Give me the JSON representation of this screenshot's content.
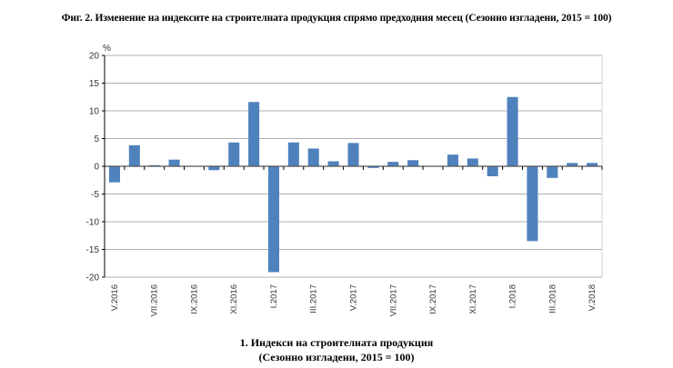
{
  "title": "Фиг. 2. Изменение на индексите на строителната продукция спрямо предходния месец (Сезонно изгладени, 2015 = 100)",
  "caption": {
    "line1": "1. Индекси на  строителната продукция",
    "line2": "(Сезонно изгладени, 2015 = 100)"
  },
  "colors": {
    "bar": "#4f81bd",
    "grid": "#b0b0b0",
    "axis": "#000000",
    "tick_label": "#333333"
  },
  "chart_data": {
    "type": "bar",
    "title": "Фиг. 2. Изменение на индексите на строителната продукция спрямо предходния месец (Сезонно изгладени, 2015 = 100)",
    "xlabel": "",
    "ylabel": "%",
    "ylim": [
      -20,
      20
    ],
    "yticks": [
      20,
      15,
      10,
      5,
      0,
      -5,
      -10,
      -15,
      -20
    ],
    "grid": true,
    "legend": "1. Индекси на  строителната продукция (Сезонно изгладени, 2015 = 100)",
    "legend_position": "bottom",
    "categories": [
      "V.2016",
      "VI.2016",
      "VII.2016",
      "VIII.2016",
      "IX.2016",
      "X.2016",
      "XI.2016",
      "XII.2016",
      "I.2017",
      "II.2017",
      "III.2017",
      "IV.2017",
      "V.2017",
      "VI.2017",
      "VII.2017",
      "VIII.2017",
      "IX.2017",
      "X.2017",
      "XI.2017",
      "XII.2017",
      "I.2018",
      "II.2018",
      "III.2018",
      "IV.2018",
      "V.2018"
    ],
    "shown_tick_labels": [
      "V.2016",
      "VII.2016",
      "IX.2016",
      "XI.2016",
      "I.2017",
      "III.2017",
      "V.2017",
      "VII.2017",
      "IX.2017",
      "XI.2017",
      "I.2018",
      "III.2018",
      "V.2018"
    ],
    "series": [
      {
        "name": "Индекси на строителната продукция",
        "values": [
          -2.9,
          3.8,
          0.2,
          1.2,
          0.0,
          -0.7,
          4.3,
          11.6,
          -19.1,
          4.3,
          3.2,
          0.9,
          4.2,
          -0.3,
          0.8,
          1.1,
          0.0,
          2.1,
          1.4,
          -1.8,
          12.5,
          -13.5,
          -2.1,
          0.6,
          0.6
        ]
      }
    ]
  }
}
